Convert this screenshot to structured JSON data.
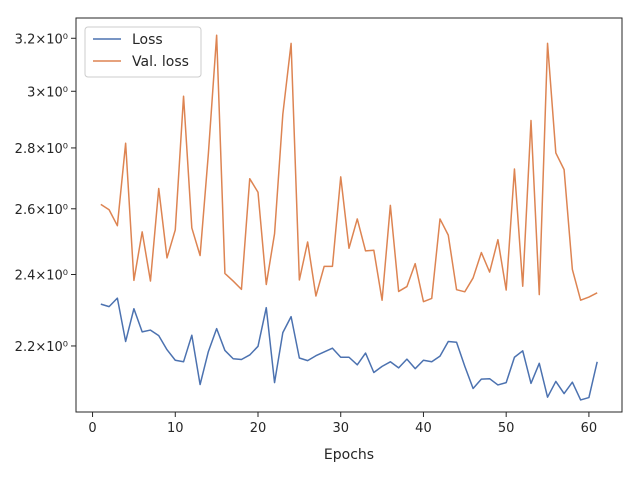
{
  "chart_data": {
    "type": "line",
    "xlabel": "Epochs",
    "ylabel": "",
    "yscale": "log",
    "xlim": [
      -2,
      64
    ],
    "ylim": [
      2.03,
      3.28
    ],
    "grid": false,
    "legend_position": "top-left",
    "x_ticks": [
      0,
      10,
      20,
      30,
      40,
      50,
      60
    ],
    "x_tick_labels": [
      "0",
      "10",
      "20",
      "30",
      "40",
      "50",
      "60"
    ],
    "y_ticks": [
      2.2,
      2.4,
      2.6,
      2.8,
      3.0,
      3.2
    ],
    "y_tick_labels": [
      "2.2×10⁰",
      "2.4×10⁰",
      "2.6×10⁰",
      "2.8×10⁰",
      "3×10⁰",
      "3.2×10⁰"
    ],
    "x": [
      1,
      2,
      3,
      4,
      5,
      6,
      7,
      8,
      9,
      10,
      11,
      12,
      13,
      14,
      15,
      16,
      17,
      18,
      19,
      20,
      21,
      22,
      23,
      24,
      25,
      26,
      27,
      28,
      29,
      30,
      31,
      32,
      33,
      34,
      35,
      36,
      37,
      38,
      39,
      40,
      41,
      42,
      43,
      44,
      45,
      46,
      47,
      48,
      49,
      50,
      51,
      52,
      53,
      54,
      55,
      56,
      57,
      58,
      59,
      60,
      61
    ],
    "series": [
      {
        "name": "Loss",
        "color": "#4c72b0",
        "values": [
          2.315,
          2.308,
          2.332,
          2.212,
          2.302,
          2.238,
          2.243,
          2.228,
          2.19,
          2.162,
          2.158,
          2.229,
          2.099,
          2.185,
          2.247,
          2.188,
          2.166,
          2.164,
          2.176,
          2.199,
          2.305,
          2.104,
          2.236,
          2.28,
          2.168,
          2.161,
          2.174,
          2.184,
          2.194,
          2.17,
          2.17,
          2.15,
          2.181,
          2.13,
          2.146,
          2.158,
          2.142,
          2.165,
          2.14,
          2.162,
          2.158,
          2.173,
          2.212,
          2.21,
          2.146,
          2.089,
          2.113,
          2.114,
          2.098,
          2.104,
          2.17,
          2.187,
          2.102,
          2.154,
          2.067,
          2.107,
          2.076,
          2.105,
          2.06,
          2.066,
          2.158
        ]
      },
      {
        "name": "Val. loss",
        "color": "#dd8452",
        "values": [
          2.614,
          2.597,
          2.547,
          2.816,
          2.383,
          2.528,
          2.381,
          2.665,
          2.449,
          2.534,
          2.982,
          2.54,
          2.456,
          2.78,
          3.212,
          2.403,
          2.381,
          2.357,
          2.697,
          2.653,
          2.371,
          2.522,
          2.917,
          3.18,
          2.384,
          2.497,
          2.338,
          2.424,
          2.424,
          2.703,
          2.478,
          2.568,
          2.47,
          2.472,
          2.326,
          2.611,
          2.351,
          2.365,
          2.432,
          2.322,
          2.331,
          2.568,
          2.518,
          2.356,
          2.35,
          2.39,
          2.465,
          2.407,
          2.504,
          2.355,
          2.729,
          2.366,
          2.895,
          2.342,
          3.18,
          2.783,
          2.727,
          2.415,
          2.326,
          2.335,
          2.347
        ]
      }
    ]
  }
}
